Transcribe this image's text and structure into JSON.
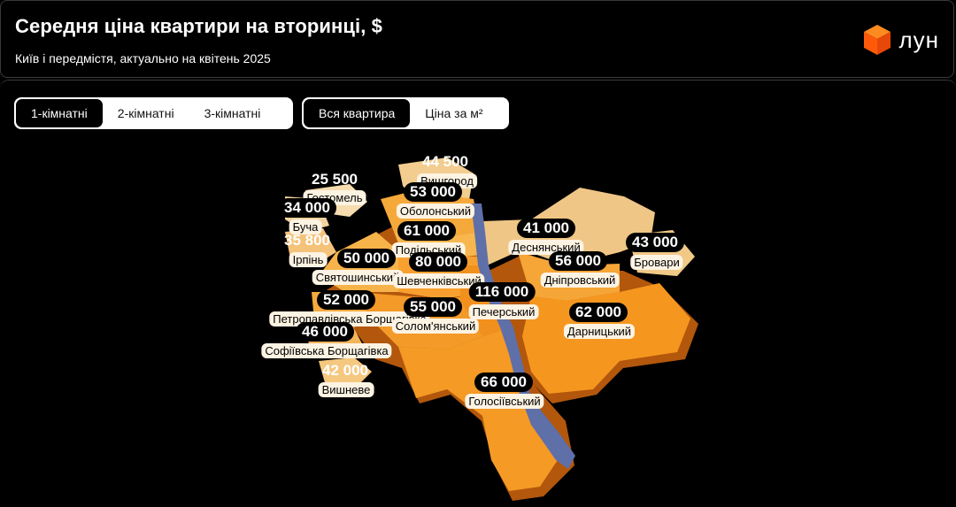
{
  "header": {
    "title": "Середня ціна квартири на вторинці, $",
    "subtitle": "Київ і передмістя, актуально на квітень 2025",
    "logo_text": "лун"
  },
  "room_tabs": [
    {
      "label": "1-кімнатні",
      "active": true
    },
    {
      "label": "2-кімнатні",
      "active": false
    },
    {
      "label": "3-кімнатні",
      "active": false
    }
  ],
  "mode_tabs": [
    {
      "label": "Вся квартира",
      "active": true
    },
    {
      "label": "Ціна за м²",
      "active": false
    }
  ],
  "colors": {
    "accent": "#f59a23",
    "river": "#5f6fa8",
    "suburb": "#f0c986",
    "label_bg": "#fdf3e3"
  },
  "regions": [
    {
      "name": "Вишгород",
      "price": "44 500"
    },
    {
      "name": "Гостомель",
      "price": "25 500"
    },
    {
      "name": "Буча",
      "price": "34 000"
    },
    {
      "name": "Ірпінь",
      "price": "35 800"
    },
    {
      "name": "Оболонський",
      "price": "53 000"
    },
    {
      "name": "Подільський",
      "price": "61 000"
    },
    {
      "name": "Святошинський",
      "price": "50 000"
    },
    {
      "name": "Шевченківський",
      "price": "80 000"
    },
    {
      "name": "Деснянський",
      "price": "41 000"
    },
    {
      "name": "Бровари",
      "price": "43 000"
    },
    {
      "name": "Дніпровський",
      "price": "56 000"
    },
    {
      "name": "Печерський",
      "price": "116 000"
    },
    {
      "name": "Петропавлівська Борщагівка",
      "price": "52 000"
    },
    {
      "name": "Солом'янський",
      "price": "55 000"
    },
    {
      "name": "Дарницький",
      "price": "62 000"
    },
    {
      "name": "Софіївська Борщагівка",
      "price": "46 000"
    },
    {
      "name": "Вишневе",
      "price": "42 000"
    },
    {
      "name": "Голосіївський",
      "price": "66 000"
    }
  ]
}
